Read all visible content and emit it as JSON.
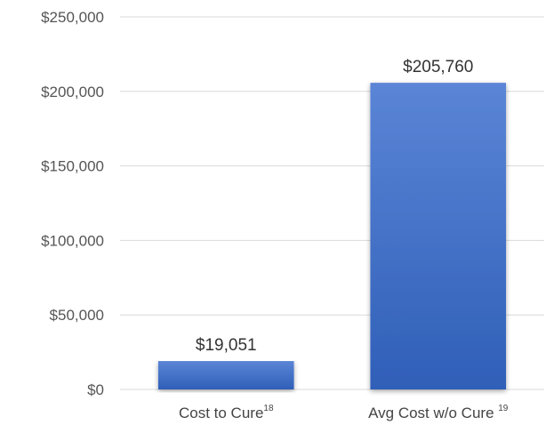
{
  "chart_data": {
    "type": "bar",
    "categories": [
      {
        "label": "Cost to Cure",
        "superscript": "18"
      },
      {
        "label": "Avg Cost w/o Cure ",
        "superscript": "19"
      }
    ],
    "values": [
      19051,
      205760
    ],
    "data_labels": [
      "$19,051",
      "$205,760"
    ],
    "y_ticks": [
      0,
      50000,
      100000,
      150000,
      200000,
      250000
    ],
    "y_tick_labels": [
      "$0",
      "$50,000",
      "$100,000",
      "$150,000",
      "$200,000",
      "$250,000"
    ],
    "ylim": [
      0,
      250000
    ],
    "grid": true,
    "legend": "none",
    "colors": {
      "bar_top": "#5b85d6",
      "bar_bottom": "#2f5fb8",
      "grid": "#d9d9d9"
    }
  }
}
